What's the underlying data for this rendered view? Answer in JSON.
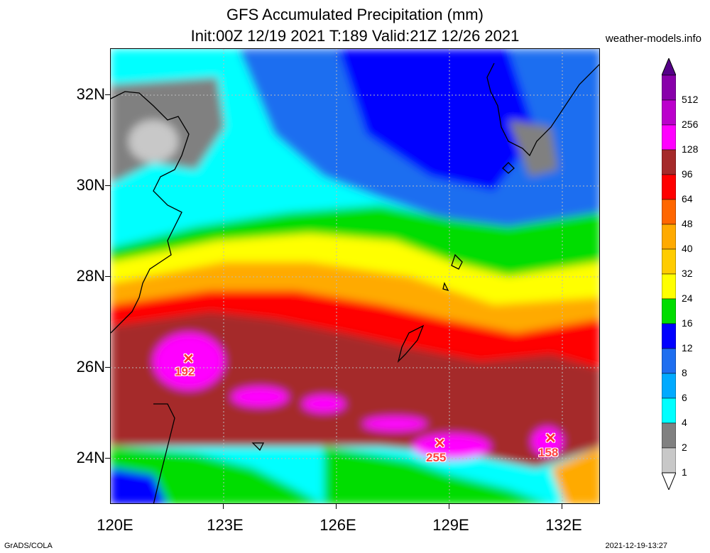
{
  "header": {
    "title_line1": "GFS Accumulated Precipitation (mm)",
    "title_line2": "Init:00Z 12/19 2021 T:189 Valid:21Z 12/26 2021",
    "site": "weather-models.info"
  },
  "footer": {
    "left": "GrADS/COLA",
    "right": "2021-12-19-13:27"
  },
  "axes": {
    "lat_labels": [
      "32N",
      "30N",
      "28N",
      "26N",
      "24N"
    ],
    "lon_labels": [
      "120E",
      "123E",
      "126E",
      "129E",
      "132E"
    ]
  },
  "legend": {
    "levels": [
      "512",
      "256",
      "128",
      "96",
      "64",
      "48",
      "40",
      "32",
      "24",
      "16",
      "12",
      "8",
      "6",
      "4",
      "2",
      "1"
    ],
    "colors": [
      "#8800aa",
      "#bb00cc",
      "#ff00ff",
      "#a52a2a",
      "#ff0000",
      "#ff6600",
      "#ffaa00",
      "#ffcc00",
      "#ffff00",
      "#00dd00",
      "#0000ff",
      "#1e6ef0",
      "#00aaff",
      "#00ffff",
      "#808080",
      "#c8c8c8"
    ]
  },
  "maxima": [
    {
      "value": "192"
    },
    {
      "value": "255"
    },
    {
      "value": "158"
    }
  ]
}
